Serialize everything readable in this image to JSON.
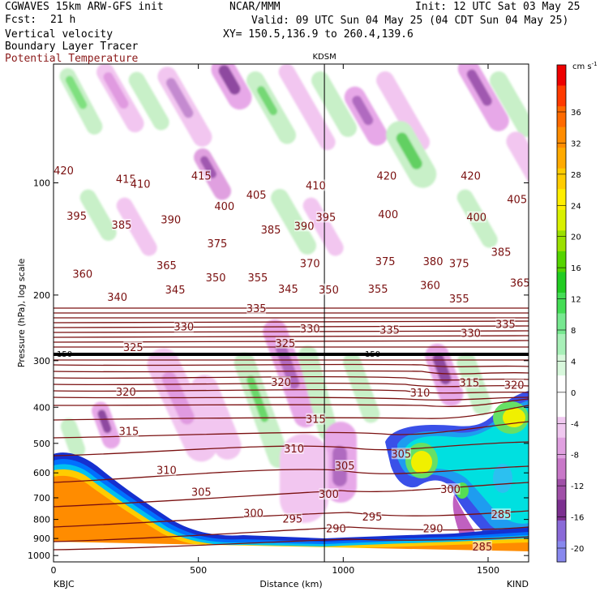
{
  "header": {
    "model": "CGWAVES 15km ARW-GFS init",
    "forecast_label": "Fcst:",
    "forecast_hours": "21 h",
    "field1": "Vertical velocity",
    "field2": "Boundary Layer Tracer",
    "field3": "Potential Temperature",
    "org": "NCAR/MMM",
    "init": "Init: 12 UTC Sat 03 May 25",
    "valid": "Valid: 09 UTC Sun 04 May 25 (04 CDT Sun 04 May 25)",
    "xy": "XY= 150.5,136.9 to 260.4,139.6"
  },
  "chart_data": {
    "type": "heatmap",
    "xlabel": "Distance (km)",
    "ylabel": "Pressure (hPa), log scale",
    "xlim": [
      0,
      1640
    ],
    "ylim": [
      1040,
      48
    ],
    "x_ticks": [
      0,
      500,
      1000,
      1500
    ],
    "y_ticks": [
      100,
      200,
      300,
      400,
      500,
      600,
      700,
      800,
      900,
      1000
    ],
    "left_station": "KBJC",
    "right_station": "KIND",
    "marker_station": "KDSM",
    "marker_x_km": 935,
    "tropopause_label": "150",
    "colorbar": {
      "units": "cm s",
      "units_exp": "-1",
      "levels": [
        36,
        32,
        28,
        24,
        20,
        16,
        12,
        8,
        4,
        0,
        -4,
        -8,
        -12,
        -16,
        -20
      ],
      "colors": [
        "#ee0000",
        "#ff3a00",
        "#ff6a00",
        "#ff8c00",
        "#ffaa00",
        "#ffcc00",
        "#ffee00",
        "#d8f000",
        "#9be000",
        "#55d400",
        "#22cc22",
        "#44dd55",
        "#77e890",
        "#a8f0b8",
        "#d8f8dc",
        "#ffffff",
        "#ffffff",
        "#f0c8f0",
        "#e0a0e0",
        "#c878c8",
        "#a050a8",
        "#7c3090",
        "#8a6ad8",
        "#8888ee"
      ]
    },
    "theta_labels": [
      {
        "x": 35,
        "p": 93,
        "v": "420"
      },
      {
        "x": 250,
        "p": 98,
        "v": "415"
      },
      {
        "x": 510,
        "p": 96,
        "v": "415"
      },
      {
        "x": 1150,
        "p": 96,
        "v": "420"
      },
      {
        "x": 1440,
        "p": 96,
        "v": "420"
      },
      {
        "x": 300,
        "p": 101,
        "v": "410"
      },
      {
        "x": 905,
        "p": 102,
        "v": "410"
      },
      {
        "x": 700,
        "p": 108,
        "v": "405"
      },
      {
        "x": 1600,
        "p": 111,
        "v": "405"
      },
      {
        "x": 80,
        "p": 123,
        "v": "395"
      },
      {
        "x": 940,
        "p": 124,
        "v": "395"
      },
      {
        "x": 590,
        "p": 116,
        "v": "400"
      },
      {
        "x": 1155,
        "p": 122,
        "v": "400"
      },
      {
        "x": 1460,
        "p": 124,
        "v": "400"
      },
      {
        "x": 235,
        "p": 130,
        "v": "385"
      },
      {
        "x": 405,
        "p": 126,
        "v": "390"
      },
      {
        "x": 750,
        "p": 134,
        "v": "385"
      },
      {
        "x": 865,
        "p": 131,
        "v": "390"
      },
      {
        "x": 565,
        "p": 146,
        "v": "375"
      },
      {
        "x": 1545,
        "p": 154,
        "v": "385"
      },
      {
        "x": 100,
        "p": 176,
        "v": "360"
      },
      {
        "x": 390,
        "p": 167,
        "v": "365"
      },
      {
        "x": 560,
        "p": 180,
        "v": "350"
      },
      {
        "x": 705,
        "p": 180,
        "v": "355"
      },
      {
        "x": 885,
        "p": 165,
        "v": "370"
      },
      {
        "x": 1145,
        "p": 163,
        "v": "375"
      },
      {
        "x": 1310,
        "p": 163,
        "v": "380"
      },
      {
        "x": 1400,
        "p": 165,
        "v": "375"
      },
      {
        "x": 950,
        "p": 194,
        "v": "350"
      },
      {
        "x": 1120,
        "p": 193,
        "v": "355"
      },
      {
        "x": 1300,
        "p": 189,
        "v": "360"
      },
      {
        "x": 1610,
        "p": 186,
        "v": "365"
      },
      {
        "x": 220,
        "p": 203,
        "v": "340"
      },
      {
        "x": 420,
        "p": 194,
        "v": "345"
      },
      {
        "x": 810,
        "p": 193,
        "v": "345"
      },
      {
        "x": 700,
        "p": 218,
        "v": "335"
      },
      {
        "x": 1400,
        "p": 205,
        "v": "355"
      },
      {
        "x": 450,
        "p": 244,
        "v": "330"
      },
      {
        "x": 885,
        "p": 247,
        "v": "330"
      },
      {
        "x": 1160,
        "p": 249,
        "v": "335"
      },
      {
        "x": 1440,
        "p": 254,
        "v": "330"
      },
      {
        "x": 1560,
        "p": 240,
        "v": "335"
      },
      {
        "x": 275,
        "p": 277,
        "v": "325"
      },
      {
        "x": 800,
        "p": 270,
        "v": "325"
      },
      {
        "x": 250,
        "p": 365,
        "v": "320"
      },
      {
        "x": 785,
        "p": 344,
        "v": "320"
      },
      {
        "x": 1265,
        "p": 367,
        "v": "310"
      },
      {
        "x": 1435,
        "p": 345,
        "v": "315"
      },
      {
        "x": 1590,
        "p": 350,
        "v": "320"
      },
      {
        "x": 260,
        "p": 465,
        "v": "315"
      },
      {
        "x": 905,
        "p": 432,
        "v": "315"
      },
      {
        "x": 830,
        "p": 518,
        "v": "310"
      },
      {
        "x": 1200,
        "p": 535,
        "v": "305"
      },
      {
        "x": 390,
        "p": 592,
        "v": "310"
      },
      {
        "x": 1005,
        "p": 576,
        "v": "305"
      },
      {
        "x": 510,
        "p": 678,
        "v": "305"
      },
      {
        "x": 950,
        "p": 687,
        "v": "300"
      },
      {
        "x": 1370,
        "p": 666,
        "v": "300"
      },
      {
        "x": 690,
        "p": 771,
        "v": "300"
      },
      {
        "x": 825,
        "p": 800,
        "v": "295"
      },
      {
        "x": 1100,
        "p": 790,
        "v": "295"
      },
      {
        "x": 1545,
        "p": 778,
        "v": "285"
      },
      {
        "x": 975,
        "p": 850,
        "v": "290"
      },
      {
        "x": 1310,
        "p": 848,
        "v": "290"
      },
      {
        "x": 1480,
        "p": 950,
        "v": "285"
      }
    ]
  }
}
